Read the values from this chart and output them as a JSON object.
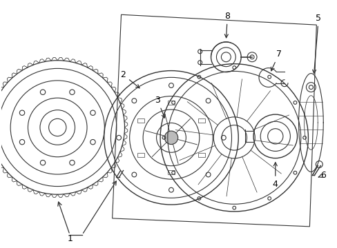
{
  "background_color": "#ffffff",
  "line_color": "#333333",
  "fig_width": 4.89,
  "fig_height": 3.6,
  "dpi": 100
}
